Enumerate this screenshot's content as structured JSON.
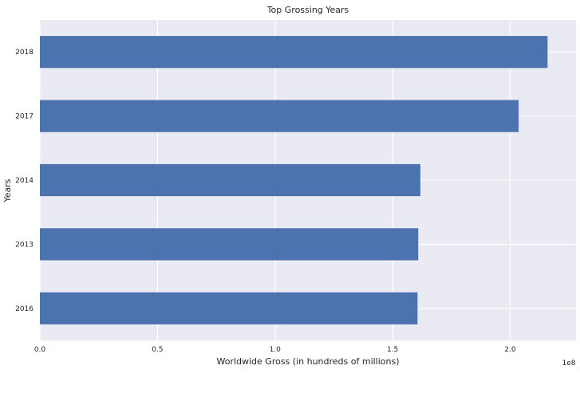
{
  "chart_data": {
    "type": "bar",
    "orientation": "horizontal",
    "title": "Top Grossing Years",
    "xlabel": "Worldwide Gross (in hundreds of millions)",
    "ylabel": "Years",
    "x_offset_text": "1e8",
    "categories": [
      "2016",
      "2013",
      "2014",
      "2017",
      "2018"
    ],
    "values": [
      160600000,
      160900000,
      161800000,
      203600000,
      215900000
    ],
    "xlim": [
      0,
      228000000
    ],
    "xticks": [
      0,
      50000000,
      100000000,
      150000000,
      200000000
    ],
    "xtick_labels": [
      "0.0",
      "0.5",
      "1.0",
      "1.5",
      "2.0"
    ],
    "grid": true,
    "bar_color": "#4c72b0",
    "plot_background": "#eaeaf2"
  }
}
